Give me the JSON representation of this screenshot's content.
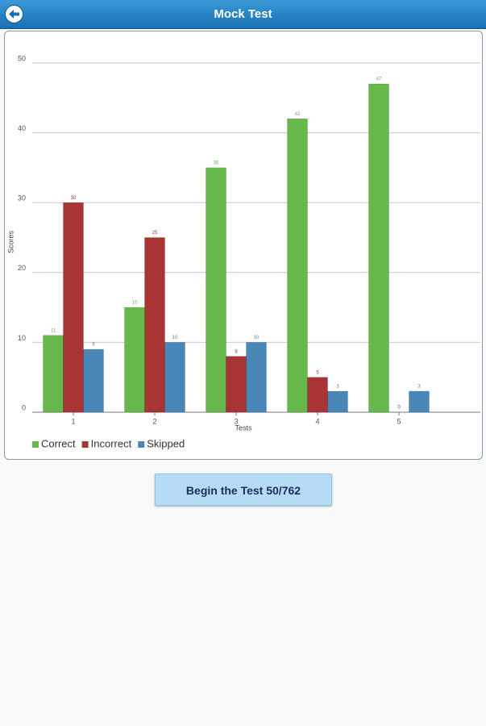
{
  "header": {
    "title": "Mock Test"
  },
  "chart_data": {
    "type": "bar",
    "x_label": "Tests",
    "y_label": "Scores",
    "categories": [
      "1",
      "2",
      "3",
      "4",
      "5"
    ],
    "series": [
      {
        "name": "Correct",
        "color": "#67b84a",
        "values": [
          11,
          15,
          35,
          42,
          47
        ]
      },
      {
        "name": "Incorrect",
        "color": "#a83434",
        "values": [
          30,
          25,
          8,
          5,
          0
        ]
      },
      {
        "name": "Skipped",
        "color": "#4a87b9",
        "values": [
          9,
          10,
          10,
          3,
          3
        ]
      }
    ],
    "ylim": [
      0,
      50
    ],
    "yticks": [
      0,
      10,
      20,
      30,
      40,
      50
    ],
    "grid": true,
    "legend": "bottom-left"
  },
  "button": {
    "label": "Begin the Test 50/762"
  }
}
